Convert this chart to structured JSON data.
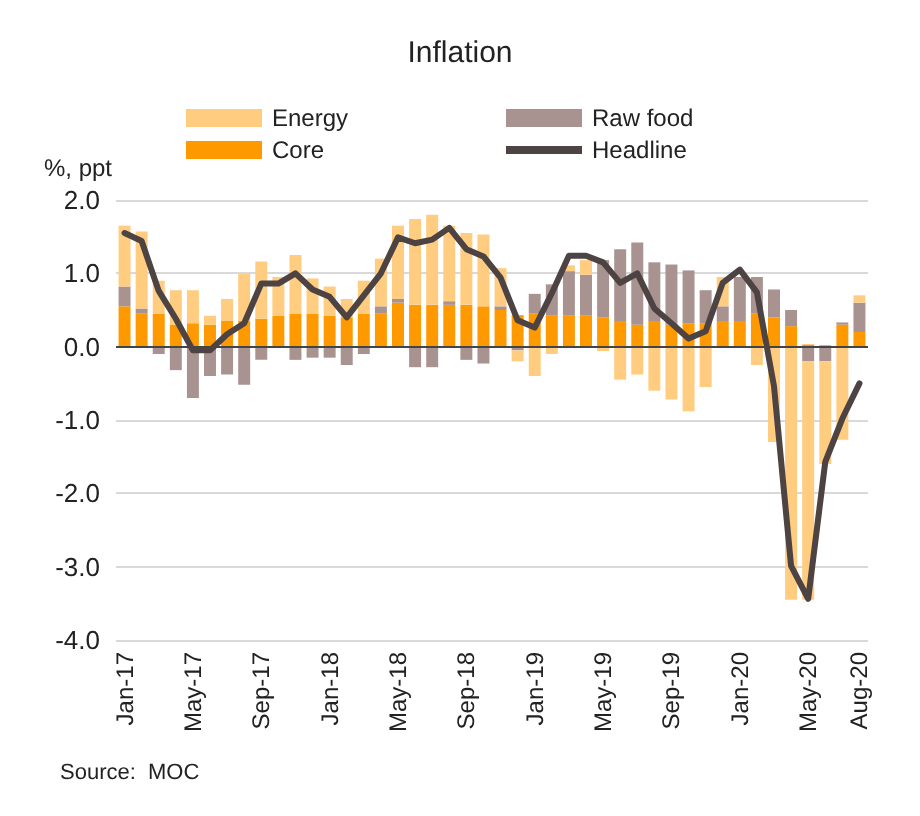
{
  "chart_data": {
    "type": "bar",
    "title": "Inflation",
    "ylabel": "%, ppt",
    "stacked": true,
    "categories": [
      "Jan-17",
      null,
      null,
      null,
      "May-17",
      null,
      null,
      null,
      "Sep-17",
      null,
      null,
      null,
      "Jan-18",
      null,
      null,
      null,
      "May-18",
      null,
      null,
      null,
      "Sep-18",
      null,
      null,
      null,
      "Jan-19",
      null,
      null,
      null,
      "May-19",
      null,
      null,
      null,
      "Sep-19",
      null,
      null,
      null,
      "Jan-20",
      null,
      null,
      null,
      "May-20",
      null,
      null,
      "Aug-20"
    ],
    "series": [
      {
        "name": "Core",
        "color": "#ff9900",
        "values": [
          0.55,
          0.45,
          0.45,
          0.3,
          0.32,
          0.3,
          0.35,
          0.35,
          0.38,
          0.42,
          0.45,
          0.45,
          0.42,
          0.4,
          0.45,
          0.45,
          0.6,
          0.57,
          0.57,
          0.57,
          0.57,
          0.55,
          0.5,
          0.43,
          0.45,
          0.43,
          0.43,
          0.43,
          0.4,
          0.35,
          0.3,
          0.35,
          0.3,
          0.32,
          0.32,
          0.35,
          0.35,
          0.45,
          0.4,
          0.28,
          0.03,
          0.02,
          0.3,
          0.2
        ]
      },
      {
        "name": "Raw food",
        "color": "#a89391",
        "values": [
          0.27,
          0.07,
          -0.1,
          -0.32,
          -0.7,
          -0.4,
          -0.38,
          -0.52,
          -0.18,
          null,
          -0.18,
          -0.15,
          -0.15,
          -0.25,
          -0.1,
          0.1,
          0.05,
          -0.28,
          -0.28,
          0.05,
          -0.18,
          -0.23,
          0.05,
          -0.05,
          0.27,
          0.42,
          0.6,
          0.55,
          0.78,
          0.98,
          1.12,
          0.8,
          0.82,
          0.72,
          0.45,
          0.2,
          0.6,
          0.5,
          0.38,
          0.22,
          -0.2,
          -0.2,
          0.03,
          0.4
        ]
      },
      {
        "name": "Energy",
        "color": "#ffcc80",
        "values": [
          0.83,
          1.05,
          0.45,
          0.47,
          0.45,
          0.12,
          0.3,
          0.64,
          0.78,
          0.53,
          0.8,
          0.48,
          0.4,
          0.25,
          0.45,
          0.65,
          1.0,
          1.17,
          1.23,
          1.03,
          0.98,
          0.98,
          0.52,
          -0.15,
          -0.4,
          -0.1,
          0.08,
          0.2,
          -0.06,
          -0.45,
          -0.38,
          -0.6,
          -0.72,
          -0.88,
          -0.55,
          0.4,
          null,
          -0.25,
          -1.3,
          -3.45,
          -3.25,
          -1.4,
          -1.27,
          0.1
        ]
      },
      {
        "name": "Headline",
        "type": "line",
        "color": "#4d4343",
        "values": [
          1.55,
          1.44,
          0.76,
          0.38,
          -0.05,
          -0.05,
          0.17,
          0.32,
          0.86,
          0.86,
          1.0,
          0.78,
          0.68,
          0.4,
          0.7,
          1.0,
          1.49,
          1.41,
          1.46,
          1.62,
          1.33,
          1.23,
          0.94,
          0.36,
          0.26,
          0.73,
          1.24,
          1.24,
          1.15,
          0.87,
          1.0,
          0.52,
          0.32,
          0.11,
          0.21,
          0.87,
          1.05,
          0.74,
          -0.54,
          -2.99,
          -3.44,
          -1.57,
          -0.98,
          -0.5
        ]
      }
    ],
    "ylim": [
      -4,
      2
    ],
    "yticks": [
      {
        "value": -4,
        "label": "-4.0"
      },
      {
        "value": -3,
        "label": "-3.0"
      },
      {
        "value": -2,
        "label": "-2.0"
      },
      {
        "value": -1,
        "label": "-1.0"
      },
      {
        "value": 0,
        "label": "0.0"
      },
      {
        "value": 1,
        "label": "1.0"
      },
      {
        "value": 2,
        "label": "2.0"
      }
    ],
    "grid": "y",
    "legend": "top",
    "marker": "none",
    "annotations": [
      "Source:  MOC"
    ]
  }
}
